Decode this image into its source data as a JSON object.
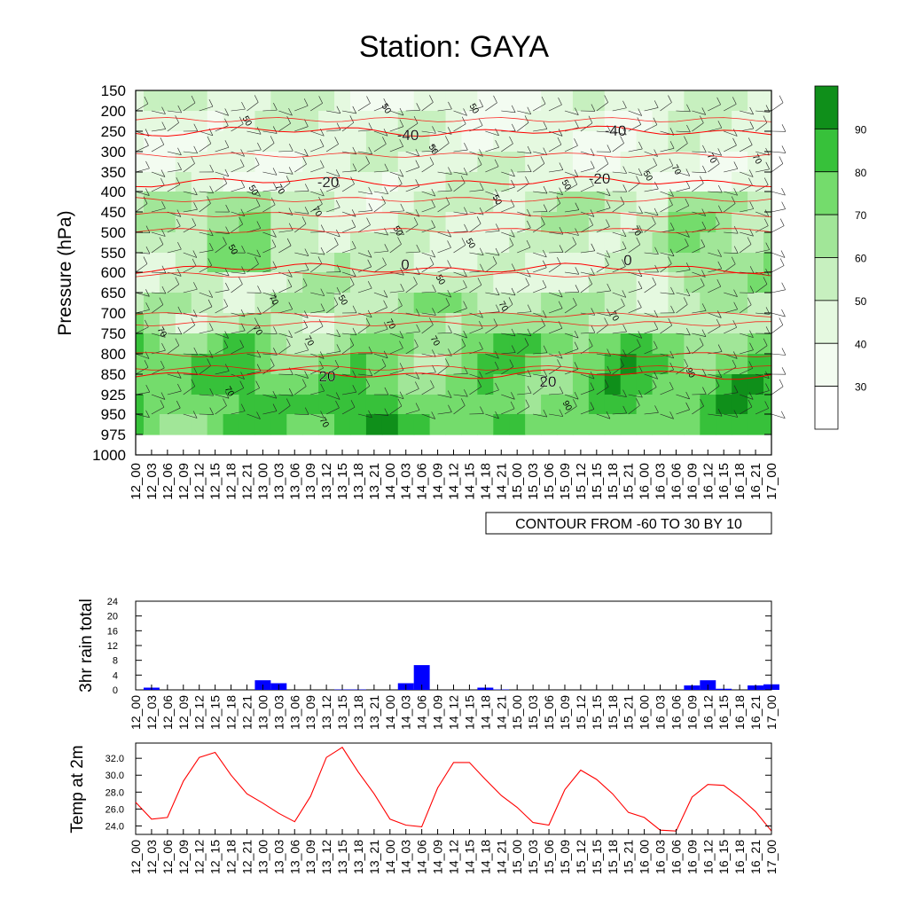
{
  "colors": {
    "light_green": "#e5f9e0",
    "mid_green": "#74dc6c",
    "dark_green": "#0f8f1a",
    "rain_bar": "#0000ff",
    "temp_line": "#ff0000",
    "isotherm": "#ff0000"
  },
  "chart_data": [
    {
      "type": "heatmap",
      "title": "Station: GAYA",
      "ylabel": "Pressure (hPa)",
      "xlabel": "",
      "y_ticks": [
        "150",
        "200",
        "250",
        "300",
        "350",
        "400",
        "450",
        "500",
        "550",
        "600",
        "650",
        "700",
        "750",
        "800",
        "850",
        "925",
        "950",
        "975",
        "1000"
      ],
      "x_ticks": [
        "12_00",
        "12_03",
        "12_06",
        "12_09",
        "12_12",
        "12_15",
        "12_18",
        "12_21",
        "13_00",
        "13_03",
        "13_06",
        "13_09",
        "13_12",
        "13_15",
        "13_18",
        "13_21",
        "14_00",
        "14_03",
        "14_06",
        "14_09",
        "14_12",
        "14_15",
        "14_18",
        "14_21",
        "15_00",
        "15_03",
        "15_06",
        "15_09",
        "15_12",
        "15_15",
        "15_18",
        "15_21",
        "16_00",
        "16_03",
        "16_06",
        "16_09",
        "16_12",
        "16_15",
        "16_18",
        "16_21",
        "17_00"
      ],
      "colorbar": {
        "levels": [
          30,
          40,
          50,
          60,
          70,
          80,
          90
        ],
        "colors": [
          "#ffffff",
          "#f3fcf1",
          "#e5f9e0",
          "#c7f0bf",
          "#a1e698",
          "#74dc6c",
          "#37c13a",
          "#0f8f1a"
        ]
      },
      "humidity_contour_labels": [
        "50",
        "70",
        "90"
      ],
      "temperature_contours": [
        {
          "label": "-40",
          "level": "250"
        },
        {
          "label": "-20",
          "level": "375"
        },
        {
          "label": "0",
          "level": "590"
        },
        {
          "label": "20",
          "level": "850"
        }
      ],
      "annotation": "CONTOUR FROM -60 TO 30 BY 10"
    },
    {
      "type": "bar",
      "ylabel": "3hr rain total",
      "xlabel": "",
      "ylim": [
        0,
        24
      ],
      "y_ticks": [
        "0",
        "4",
        "8",
        "12",
        "16",
        "20",
        "24"
      ],
      "categories": [
        "12_00",
        "12_03",
        "12_06",
        "12_09",
        "12_12",
        "12_15",
        "12_18",
        "12_21",
        "13_00",
        "13_03",
        "13_06",
        "13_09",
        "13_12",
        "13_15",
        "13_18",
        "13_21",
        "14_00",
        "14_03",
        "14_06",
        "14_09",
        "14_12",
        "14_15",
        "14_18",
        "14_21",
        "15_00",
        "15_03",
        "15_06",
        "15_09",
        "15_12",
        "15_15",
        "15_18",
        "15_21",
        "16_00",
        "16_03",
        "16_06",
        "16_09",
        "16_12",
        "16_15",
        "16_18",
        "16_21",
        "17_00"
      ],
      "values": [
        0,
        0.6,
        0,
        0,
        0,
        0,
        0,
        0,
        2.6,
        1.8,
        0,
        0,
        0,
        0.1,
        0.1,
        0,
        0,
        1.8,
        6.7,
        0,
        0,
        0,
        0.6,
        0.1,
        0,
        0,
        0,
        0,
        0,
        0,
        0,
        0,
        0,
        0,
        0,
        1.2,
        2.6,
        0.3,
        0,
        1.2,
        1.5
      ]
    },
    {
      "type": "line",
      "ylabel": "Temp at 2m",
      "xlabel": "",
      "ylim": [
        23.0,
        33.8
      ],
      "y_ticks": [
        "24.0",
        "26.0",
        "28.0",
        "30.0",
        "32.0"
      ],
      "categories": [
        "12_00",
        "12_03",
        "12_06",
        "12_09",
        "12_12",
        "12_15",
        "12_18",
        "12_21",
        "13_00",
        "13_03",
        "13_06",
        "13_09",
        "13_12",
        "13_15",
        "13_18",
        "13_21",
        "14_00",
        "14_03",
        "14_06",
        "14_09",
        "14_12",
        "14_15",
        "14_18",
        "14_21",
        "15_00",
        "15_03",
        "15_06",
        "15_09",
        "15_12",
        "15_15",
        "15_18",
        "15_21",
        "16_00",
        "16_03",
        "16_06",
        "16_09",
        "16_12",
        "16_15",
        "16_18",
        "16_21",
        "17_00"
      ],
      "values": [
        26.8,
        24.8,
        25.0,
        29.3,
        32.1,
        32.7,
        30.0,
        27.8,
        26.7,
        25.5,
        24.5,
        27.5,
        32.1,
        33.3,
        30.4,
        27.8,
        24.8,
        24.1,
        23.9,
        28.5,
        31.5,
        31.5,
        29.5,
        27.6,
        26.2,
        24.4,
        24.1,
        28.3,
        30.6,
        29.5,
        27.8,
        25.6,
        25.0,
        23.5,
        23.4,
        27.4,
        28.9,
        28.8,
        27.4,
        25.7,
        23.4
      ]
    }
  ]
}
